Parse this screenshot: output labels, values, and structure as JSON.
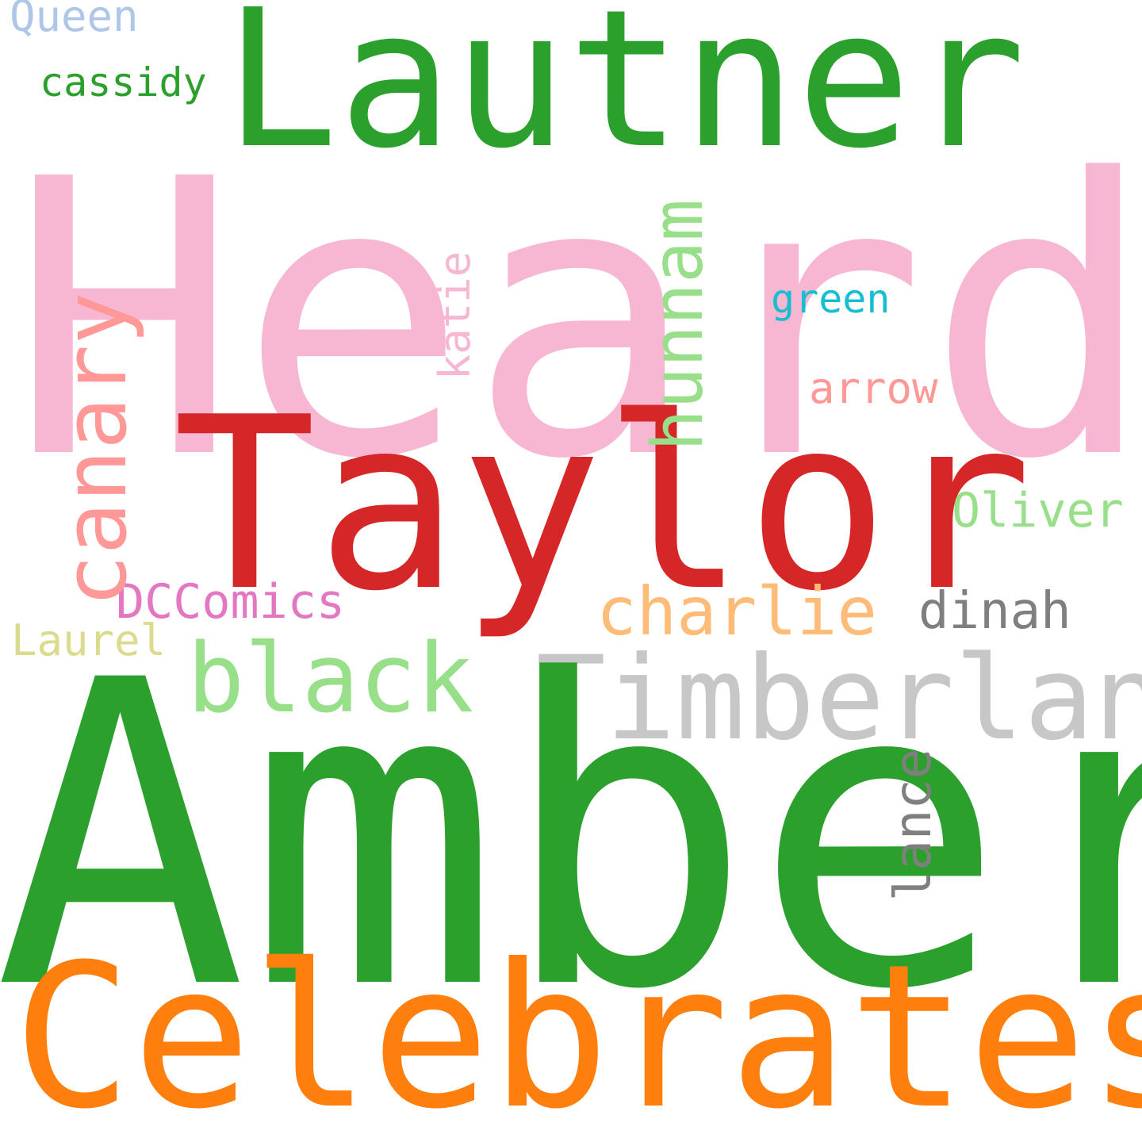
{
  "words": {
    "heard": {
      "text": "Heard",
      "color": "#f7b6d2"
    },
    "lautner": {
      "text": "Lautner",
      "color": "#2ca02c"
    },
    "taylor": {
      "text": "Taylor",
      "color": "#d62728"
    },
    "amber": {
      "text": "Amber",
      "color": "#2ca02c"
    },
    "celebrates": {
      "text": "Celebrates",
      "color": "#ff7f0e"
    },
    "timberland": {
      "text": "Timberland",
      "color": "#c7c7c7"
    },
    "black": {
      "text": "black",
      "color": "#98df8a"
    },
    "charlie": {
      "text": "charlie",
      "color": "#ffbb78"
    },
    "dccomics": {
      "text": "DCComics",
      "color": "#e377c2"
    },
    "laurel": {
      "text": "Laurel",
      "color": "#dbdb8d"
    },
    "oliver": {
      "text": "Oliver",
      "color": "#98df8a"
    },
    "dinah": {
      "text": "dinah",
      "color": "#7f7f7f"
    },
    "arrow": {
      "text": "arrow",
      "color": "#ff9896"
    },
    "green": {
      "text": "green",
      "color": "#17becf"
    },
    "queen": {
      "text": "Queen",
      "color": "#aec7e8"
    },
    "cassidy": {
      "text": "cassidy",
      "color": "#2ca02c"
    },
    "canary": {
      "text": "canary",
      "color": "#ff9896"
    },
    "hunnam": {
      "text": "hunnam",
      "color": "#98df8a"
    },
    "katie": {
      "text": "katie",
      "color": "#f7b6d2"
    },
    "lance": {
      "text": "lance",
      "color": "#7f7f7f"
    }
  }
}
